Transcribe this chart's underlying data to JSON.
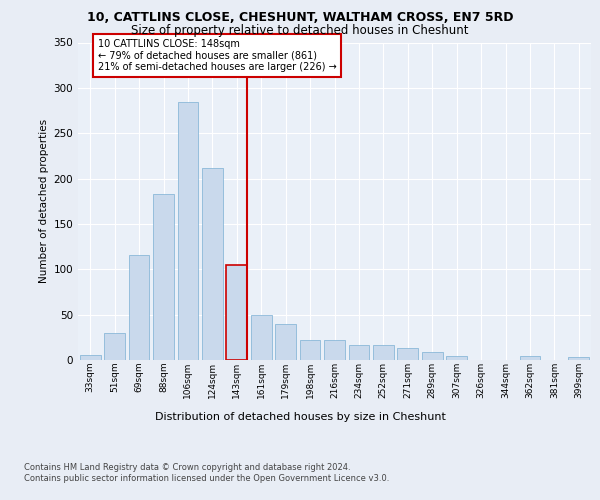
{
  "title1": "10, CATTLINS CLOSE, CHESHUNT, WALTHAM CROSS, EN7 5RD",
  "title2": "Size of property relative to detached houses in Cheshunt",
  "xlabel": "Distribution of detached houses by size in Cheshunt",
  "ylabel": "Number of detached properties",
  "categories": [
    "33sqm",
    "51sqm",
    "69sqm",
    "88sqm",
    "106sqm",
    "124sqm",
    "143sqm",
    "161sqm",
    "179sqm",
    "198sqm",
    "216sqm",
    "234sqm",
    "252sqm",
    "271sqm",
    "289sqm",
    "307sqm",
    "326sqm",
    "344sqm",
    "362sqm",
    "381sqm",
    "399sqm"
  ],
  "values": [
    5,
    30,
    116,
    183,
    284,
    212,
    105,
    50,
    40,
    22,
    22,
    17,
    17,
    13,
    9,
    4,
    0,
    0,
    4,
    0,
    3
  ],
  "bar_color": "#c9d9ec",
  "bar_edgecolor": "#7bafd4",
  "highlight_index": 6,
  "highlight_color": "#cc0000",
  "annotation_line1": "10 CATTLINS CLOSE: 148sqm",
  "annotation_line2": "← 79% of detached houses are smaller (861)",
  "annotation_line3": "21% of semi-detached houses are larger (226) →",
  "annotation_box_color": "#cc0000",
  "ylim": [
    0,
    350
  ],
  "yticks": [
    0,
    50,
    100,
    150,
    200,
    250,
    300,
    350
  ],
  "footer1": "Contains HM Land Registry data © Crown copyright and database right 2024.",
  "footer2": "Contains public sector information licensed under the Open Government Licence v3.0.",
  "bg_color": "#e8edf5",
  "plot_bg": "#eaf0f8"
}
